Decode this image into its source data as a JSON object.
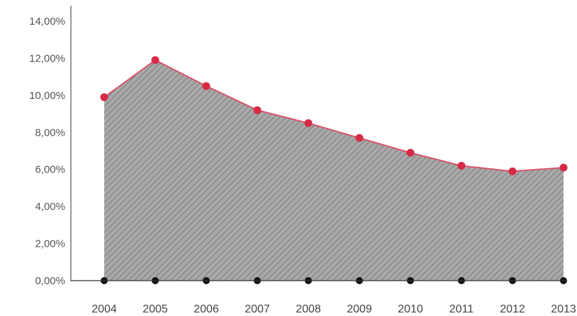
{
  "chart_data": {
    "type": "area",
    "title": "",
    "xlabel": "",
    "ylabel": "",
    "x": [
      "2004",
      "2005",
      "2006",
      "2007",
      "2008",
      "2009",
      "2010",
      "2011",
      "2012",
      "2013"
    ],
    "series": [
      {
        "values": [
          9.9,
          11.9,
          10.5,
          9.2,
          8.5,
          7.7,
          6.9,
          6.2,
          5.9,
          6.1
        ]
      }
    ],
    "ylim": [
      0,
      14
    ],
    "yticks": [
      0,
      2,
      4,
      6,
      8,
      10,
      12,
      14
    ],
    "ytick_labels": [
      "0,00%",
      "2,00%",
      "4,00%",
      "6,00%",
      "8,00%",
      "10,00%",
      "12,00%",
      "14,00%"
    ],
    "grid": false,
    "legend": "none",
    "colors": {
      "area_fill": "#a9a9a9",
      "hatch": "#7a7a7a",
      "line": "#d9536b",
      "markers": "#d62a45",
      "baseline_markers": "#111111",
      "axis": "#333333"
    }
  }
}
